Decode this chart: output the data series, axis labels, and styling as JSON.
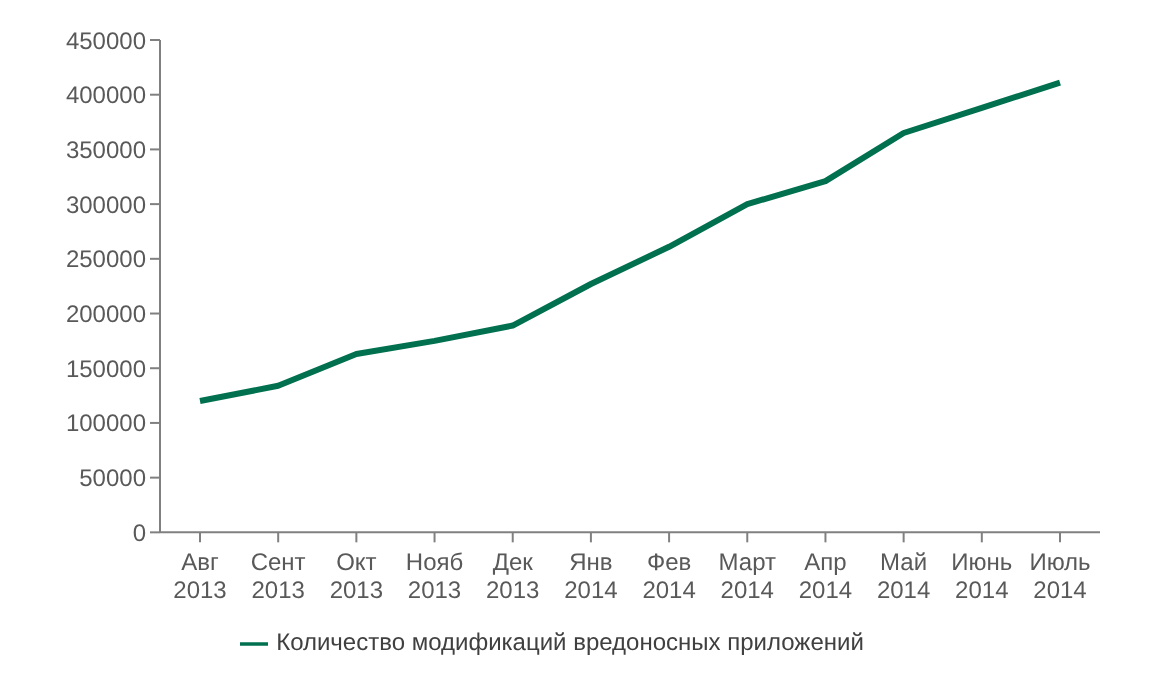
{
  "chart_data": {
    "type": "line",
    "categories": [
      "Авг 2013",
      "Сент 2013",
      "Окт 2013",
      "Нояб 2013",
      "Дек 2013",
      "Янв 2014",
      "Фев 2014",
      "Март 2014",
      "Апр 2014",
      "Май 2014",
      "Июнь 2014",
      "Июль 2014"
    ],
    "series": [
      {
        "name": "Количество модификаций вредоносных приложений",
        "color": "#00704f",
        "values": [
          120000,
          134000,
          163000,
          175000,
          189000,
          227000,
          261000,
          300000,
          321000,
          365000,
          388000,
          411000
        ]
      }
    ],
    "ylim": [
      0,
      450000
    ],
    "yticks": [
      0,
      50000,
      100000,
      150000,
      200000,
      250000,
      300000,
      350000,
      400000,
      450000
    ],
    "legend": "bottom",
    "marker": "none",
    "line_style": "solid",
    "grid": false
  }
}
